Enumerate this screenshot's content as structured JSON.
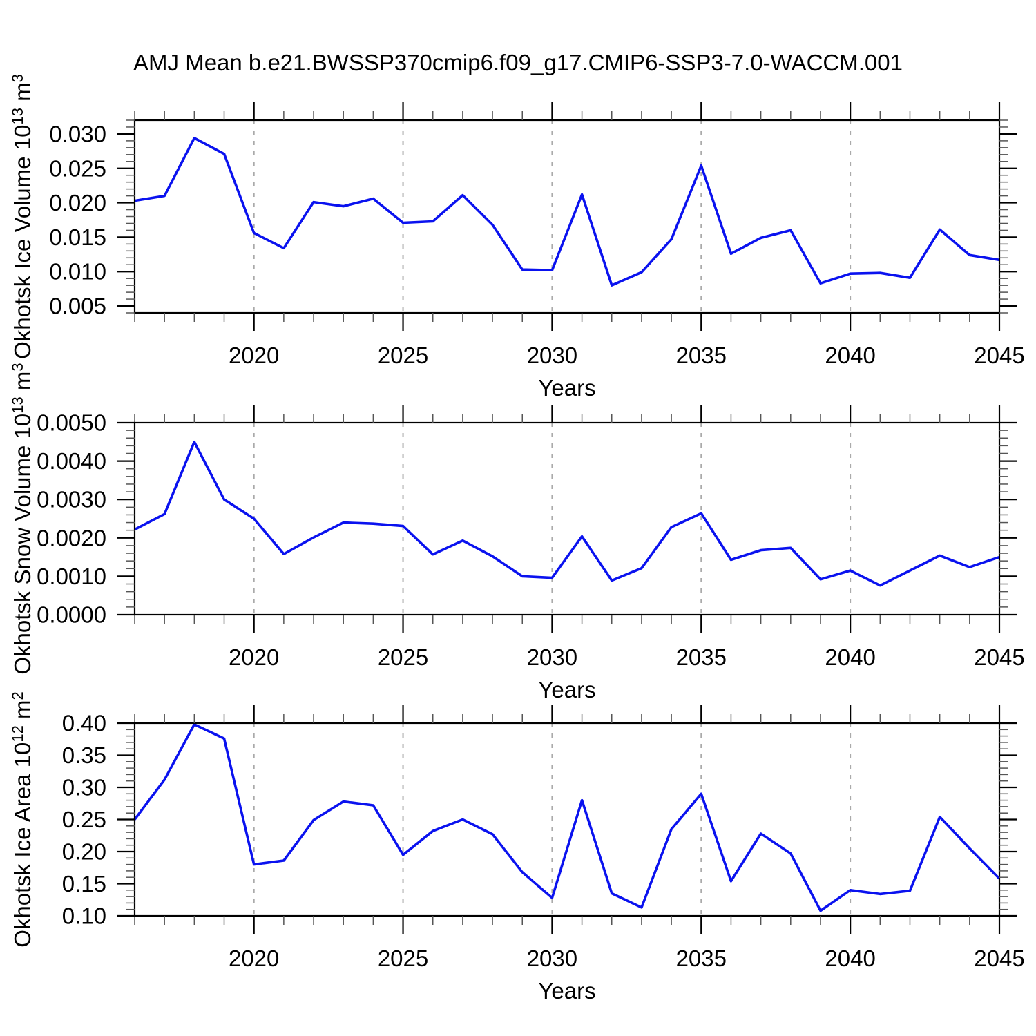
{
  "title": "AMJ Mean b.e21.BWSSP370cmip6.f09_g17.CMIP6-SSP3-7.0-WACCM.001",
  "xlabel": "Years",
  "years": [
    2016,
    2017,
    2018,
    2019,
    2020,
    2021,
    2022,
    2023,
    2024,
    2025,
    2026,
    2027,
    2028,
    2029,
    2030,
    2031,
    2032,
    2033,
    2034,
    2035,
    2036,
    2037,
    2038,
    2039,
    2040,
    2041,
    2042,
    2043,
    2044,
    2045
  ],
  "x_axis": {
    "min": 2016,
    "max": 2045,
    "major_ticks": [
      2020,
      2025,
      2030,
      2035,
      2040,
      2045
    ],
    "major_tick_labels": [
      "2020",
      "2025",
      "2030",
      "2035",
      "2040",
      "2045"
    ],
    "minor_step": 1,
    "gridline_years": [
      2020,
      2025,
      2030,
      2035,
      2040
    ]
  },
  "colors": {
    "line": "#0a12ef",
    "axis": "#000000",
    "minor_tick": "#555555",
    "grid": "#aaaaaa",
    "text": "#000000",
    "background": "#ffffff"
  },
  "chart_data": [
    {
      "type": "line",
      "name": "ice-volume",
      "ylabel": "Okhotsk Ice Volume 10^13 m^3",
      "ylabel_parts": [
        {
          "t": "Okhotsk Ice Volume 10"
        },
        {
          "t": "13",
          "sup": true
        },
        {
          "t": " m"
        },
        {
          "t": "3",
          "sup": true
        }
      ],
      "ylim": [
        0.004,
        0.032
      ],
      "ytick_values": [
        0.005,
        0.01,
        0.015,
        0.02,
        0.025,
        0.03
      ],
      "ytick_labels": [
        "0.005",
        "0.010",
        "0.015",
        "0.020",
        "0.025",
        "0.030"
      ],
      "yminor_step": 0.001,
      "xlabel": "Years",
      "values": [
        0.0203,
        0.021,
        0.0294,
        0.0271,
        0.0156,
        0.0134,
        0.0201,
        0.0195,
        0.0206,
        0.0171,
        0.0173,
        0.0211,
        0.0168,
        0.0103,
        0.0102,
        0.0212,
        0.008,
        0.0099,
        0.0147,
        0.0254,
        0.0126,
        0.0149,
        0.016,
        0.0083,
        0.0097,
        0.0098,
        0.0091,
        0.0161,
        0.0124,
        0.0117
      ]
    },
    {
      "type": "line",
      "name": "snow-volume",
      "ylabel": "Okhotsk Snow Volume 10^13 m^3",
      "ylabel_parts": [
        {
          "t": "Okhotsk Snow Volume 10"
        },
        {
          "t": "13",
          "sup": true
        },
        {
          "t": " m"
        },
        {
          "t": "3",
          "sup": true
        }
      ],
      "ylim": [
        0.0,
        0.005
      ],
      "ytick_values": [
        0.0,
        0.001,
        0.002,
        0.003,
        0.004,
        0.005
      ],
      "ytick_labels": [
        "0.0000",
        "0.0010",
        "0.0020",
        "0.0030",
        "0.0040",
        "0.0050"
      ],
      "yminor_step": 0.0002,
      "xlabel": "Years",
      "values": [
        0.00222,
        0.00262,
        0.0045,
        0.003,
        0.0025,
        0.00158,
        0.00201,
        0.0024,
        0.00237,
        0.00231,
        0.00157,
        0.00193,
        0.00152,
        0.001,
        0.00096,
        0.00204,
        0.00089,
        0.00121,
        0.00228,
        0.00264,
        0.00143,
        0.00168,
        0.00174,
        0.00092,
        0.00115,
        0.00076,
        0.00115,
        0.00154,
        0.00124,
        0.0015
      ]
    },
    {
      "type": "line",
      "name": "ice-area",
      "ylabel": "Okhotsk Ice Area 10^12 m^2",
      "ylabel_parts": [
        {
          "t": "Okhotsk Ice Area 10"
        },
        {
          "t": "12",
          "sup": true
        },
        {
          "t": " m"
        },
        {
          "t": "2",
          "sup": true
        }
      ],
      "ylim": [
        0.1,
        0.4
      ],
      "ytick_values": [
        0.1,
        0.15,
        0.2,
        0.25,
        0.3,
        0.35,
        0.4
      ],
      "ytick_labels": [
        "0.10",
        "0.15",
        "0.20",
        "0.25",
        "0.30",
        "0.35",
        "0.40"
      ],
      "yminor_step": 0.01,
      "xlabel": "Years",
      "values": [
        0.25,
        0.312,
        0.398,
        0.376,
        0.18,
        0.186,
        0.249,
        0.278,
        0.272,
        0.195,
        0.232,
        0.25,
        0.227,
        0.168,
        0.128,
        0.28,
        0.135,
        0.113,
        0.235,
        0.29,
        0.154,
        0.228,
        0.197,
        0.108,
        0.14,
        0.134,
        0.139,
        0.254,
        0.205,
        0.158
      ]
    }
  ]
}
